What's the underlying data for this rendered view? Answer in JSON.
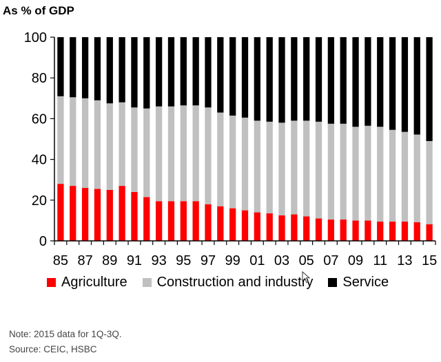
{
  "chart_data": {
    "type": "bar",
    "stacked": true,
    "title": "",
    "ylabel": "As % of GDP",
    "xlabel": "",
    "ylim": [
      0,
      100
    ],
    "yticks": [
      0,
      20,
      40,
      60,
      80,
      100
    ],
    "grid": false,
    "legend_position": "bottom",
    "categories": [
      "85",
      "86",
      "87",
      "88",
      "89",
      "90",
      "91",
      "92",
      "93",
      "94",
      "95",
      "96",
      "97",
      "98",
      "99",
      "00",
      "01",
      "02",
      "03",
      "04",
      "05",
      "06",
      "07",
      "08",
      "09",
      "10",
      "11",
      "12",
      "13",
      "14",
      "15"
    ],
    "xtick_labels": [
      "85",
      "87",
      "89",
      "91",
      "93",
      "95",
      "97",
      "99",
      "01",
      "03",
      "05",
      "07",
      "09",
      "11",
      "13",
      "15"
    ],
    "series": [
      {
        "name": "Agriculture",
        "color": "#ff0000",
        "values": [
          28,
          27,
          26,
          25.5,
          25,
          27,
          24,
          21.5,
          19.5,
          19.5,
          19.5,
          19.5,
          18,
          17,
          16,
          15,
          14,
          13.5,
          12.5,
          13,
          12,
          11,
          10.5,
          10.5,
          10,
          10,
          9.5,
          9.5,
          9.5,
          9.2,
          8.2
        ]
      },
      {
        "name": "Construction and industry",
        "color": "#c0c0c0",
        "values": [
          43,
          43.5,
          44,
          43.5,
          42.5,
          41,
          41.5,
          43.5,
          46.5,
          46.5,
          47,
          47,
          47.5,
          46,
          45.5,
          45.5,
          45,
          45,
          45.5,
          46,
          47,
          47.5,
          47,
          47,
          46,
          46.5,
          46.5,
          45,
          44,
          43,
          40.8
        ]
      },
      {
        "name": "Service",
        "color": "#000000",
        "values": [
          29,
          29.5,
          30,
          31,
          32.5,
          32,
          34.5,
          35,
          34,
          34,
          33.5,
          33.5,
          34.5,
          37,
          38.5,
          39.5,
          41,
          41.5,
          42,
          41,
          41,
          41.5,
          42.5,
          42.5,
          44,
          43.5,
          44,
          45.5,
          46.5,
          47.8,
          51
        ]
      }
    ]
  },
  "notes": {
    "note": "Note: 2015 data for 1Q-3Q.",
    "source": "Source: CEIC, HSBC"
  }
}
